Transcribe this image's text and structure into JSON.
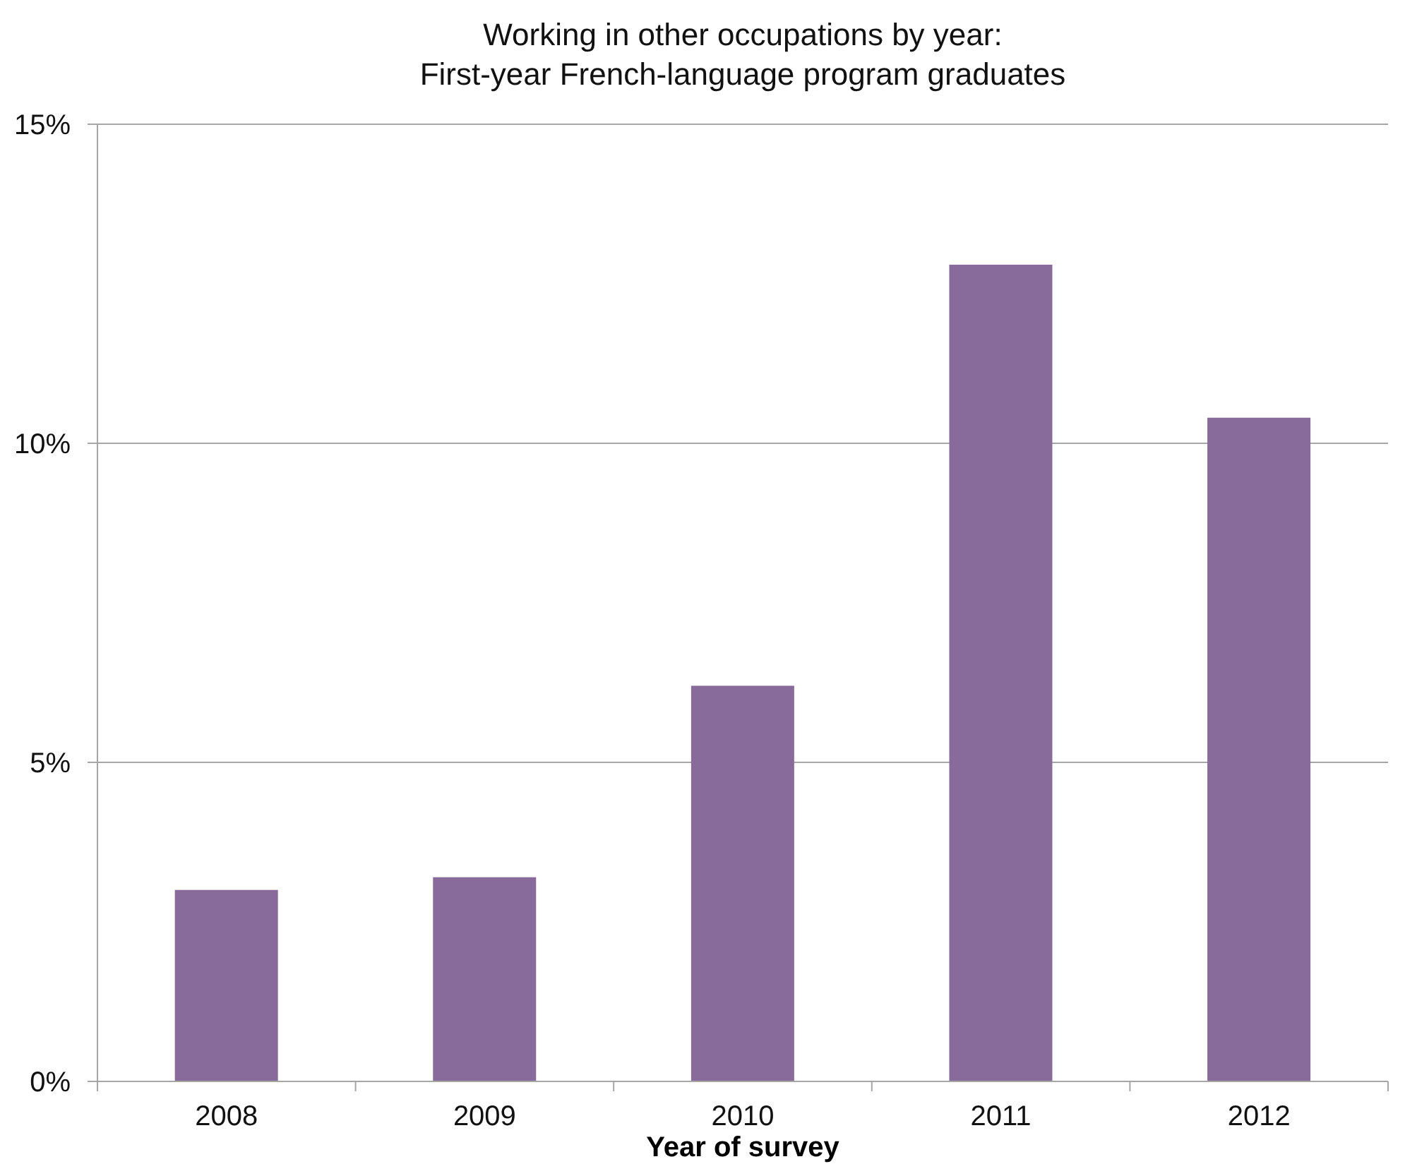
{
  "chart_data": {
    "type": "bar",
    "title": "Working in other occupations by year:\nFirst-year French-language program graduates",
    "xlabel": "Year of survey",
    "categories": [
      "2008",
      "2009",
      "2010",
      "2011",
      "2012"
    ],
    "values": [
      3.0,
      3.2,
      6.2,
      12.8,
      10.4
    ],
    "color": "#886b9b",
    "ylim": [
      0,
      15
    ],
    "yticks": [
      {
        "value": 0,
        "label": "0%"
      },
      {
        "value": 5,
        "label": "5%"
      },
      {
        "value": 10,
        "label": "10%"
      },
      {
        "value": 15,
        "label": "15%"
      }
    ],
    "grid": "y"
  }
}
